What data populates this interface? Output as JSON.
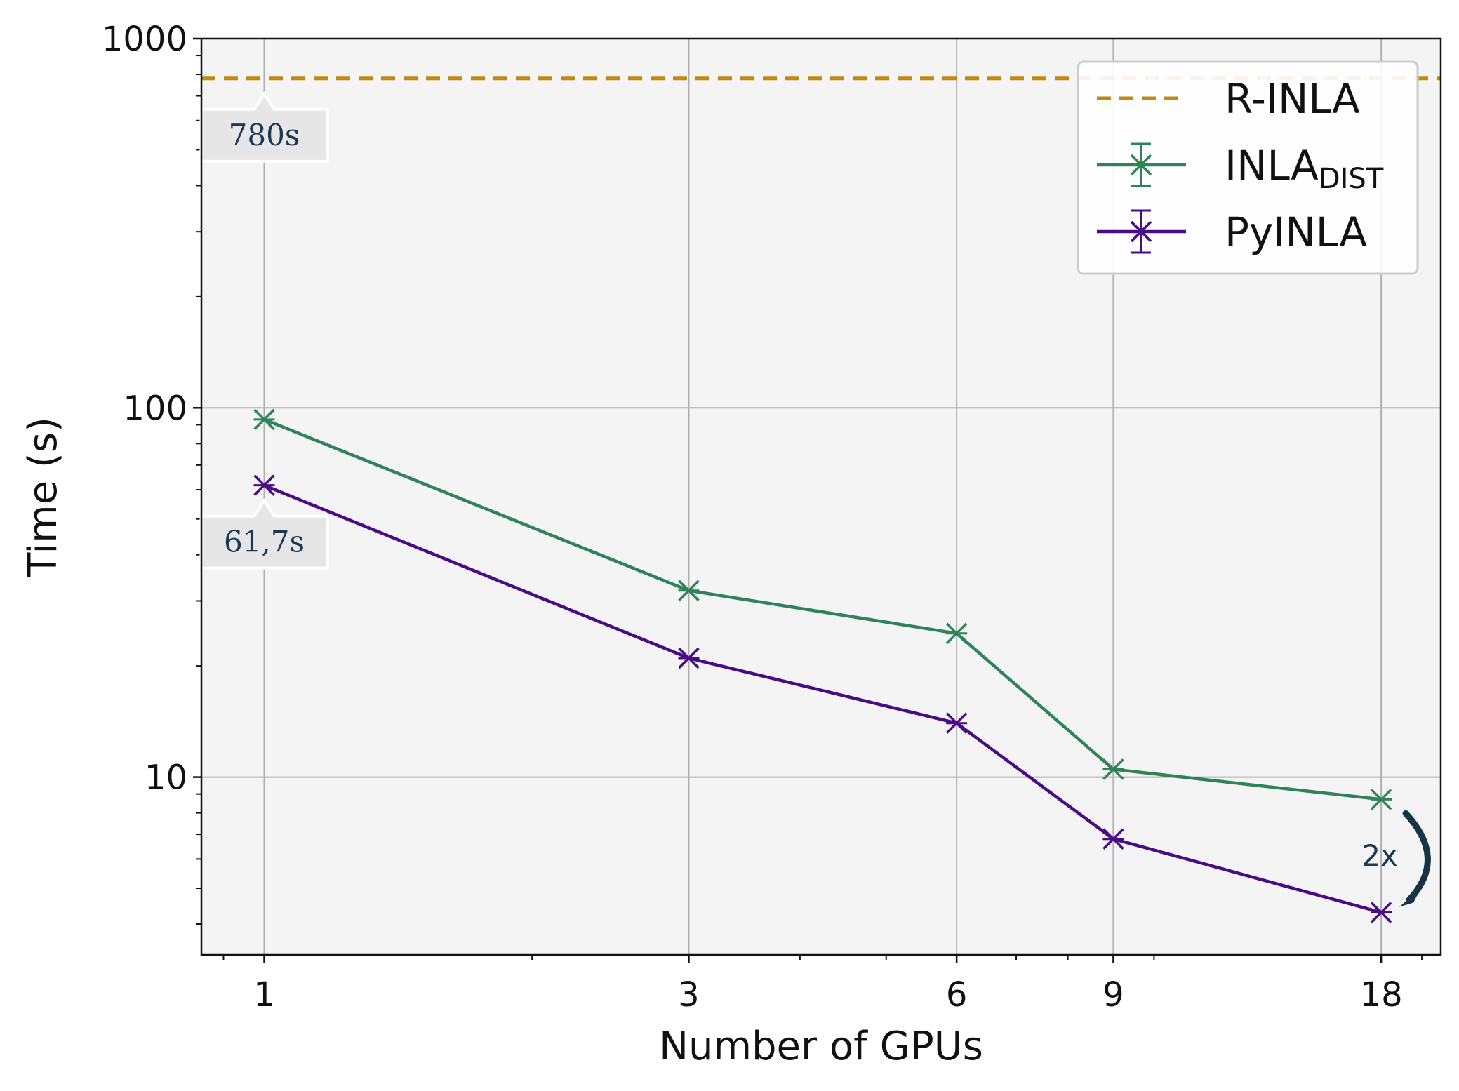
{
  "chart_data": {
    "type": "line",
    "xscale": "log",
    "yscale": "log",
    "xlim": [
      0.85,
      21
    ],
    "ylim": [
      3.3,
      1000
    ],
    "x": [
      1,
      3,
      6,
      9,
      18
    ],
    "xticks": [
      "1",
      "3",
      "6",
      "9",
      "18"
    ],
    "yticks": [
      {
        "value": 10,
        "label": "10"
      },
      {
        "value": 100,
        "label": "100"
      },
      {
        "value": 1000,
        "label": "1000"
      }
    ],
    "xlabel": "Number of GPUs",
    "ylabel": "Time (s)",
    "grid": true,
    "legend_position": "top-right",
    "series": [
      {
        "name": "R-INLA",
        "label_main": "R-INLA",
        "label_sub": "",
        "style": "dashed",
        "constant": 780,
        "color": "#c08a12"
      },
      {
        "name": "INLA_DIST",
        "label_main": "INLA",
        "label_sub": "DIST",
        "style": "line-x-marker",
        "values": [
          93,
          32,
          24.5,
          10.5,
          8.7
        ],
        "color": "#2e8458"
      },
      {
        "name": "PyINLA",
        "label_main": "PyINLA",
        "label_sub": "",
        "style": "line-x-marker",
        "values": [
          61.7,
          21,
          14,
          6.8,
          4.3
        ],
        "color": "#4a0c84"
      }
    ],
    "annotations": [
      {
        "text": "780s",
        "x": 1,
        "y": 780
      },
      {
        "text": "61,7s",
        "x": 1,
        "y": 61.7
      },
      {
        "text": "2x",
        "x": 18,
        "from": 8.7,
        "to": 4.3
      }
    ]
  }
}
